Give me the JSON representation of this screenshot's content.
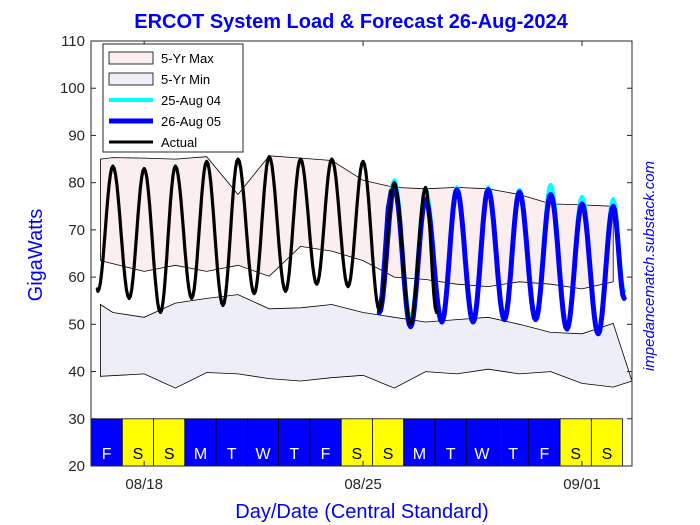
{
  "chart_data": {
    "type": "line",
    "title": "ERCOT System Load & Forecast 26-Aug-2024",
    "xlabel": "Day/Date (Central Standard)",
    "ylabel": "GigaWatts",
    "ylim": [
      20,
      110
    ],
    "xlim": [
      0,
      17.3
    ],
    "y_ticks": [
      20,
      30,
      40,
      50,
      60,
      70,
      80,
      90,
      100,
      110
    ],
    "x_ticks": [
      {
        "x": 1.7,
        "label": "08/18"
      },
      {
        "x": 8.7,
        "label": "08/25"
      },
      {
        "x": 15.7,
        "label": "09/01"
      }
    ],
    "grid": false,
    "legend_position": "top-left",
    "legend": [
      "5-Yr Max",
      "5-Yr Min",
      "25-Aug 04",
      "26-Aug 05",
      "Actual"
    ],
    "day_strip": {
      "labels": [
        "F",
        "S",
        "S",
        "M",
        "T",
        "W",
        "T",
        "F",
        "S",
        "S",
        "M",
        "T",
        "W",
        "T",
        "F",
        "S",
        "S"
      ],
      "weekday_color": "#0000ff",
      "weekend_color": "#ffff00"
    },
    "credit_text": "impedancematch.substack.com",
    "series": [
      {
        "name": "5-Yr Max",
        "fill_color": "#fbeeee",
        "upper": [
          [
            0.3,
            85
          ],
          [
            0.7,
            85.3
          ],
          [
            1.7,
            85.2
          ],
          [
            2.7,
            85
          ],
          [
            3.7,
            85.5
          ],
          [
            4.7,
            77.5
          ],
          [
            5.7,
            85.7
          ],
          [
            6.7,
            85.2
          ],
          [
            7.7,
            84.7
          ],
          [
            8.7,
            80.5
          ],
          [
            9.7,
            79
          ],
          [
            10.7,
            78.7
          ],
          [
            11.7,
            79
          ],
          [
            12.7,
            78.7
          ],
          [
            13.7,
            77.5
          ],
          [
            14.7,
            75.5
          ],
          [
            15.7,
            75.3
          ],
          [
            16.7,
            75
          ]
        ],
        "lower": [
          [
            0.3,
            63.5
          ],
          [
            1.7,
            61.2
          ],
          [
            2.7,
            62.5
          ],
          [
            3.7,
            61.2
          ],
          [
            4.7,
            62.5
          ],
          [
            5.7,
            60.2
          ],
          [
            6.7,
            66.5
          ],
          [
            7.7,
            65.5
          ],
          [
            8.7,
            63.5
          ],
          [
            9.7,
            60
          ],
          [
            10.7,
            59.5
          ],
          [
            11.7,
            58.5
          ],
          [
            12.7,
            58
          ],
          [
            13.7,
            59
          ],
          [
            14.7,
            58.5
          ],
          [
            15.7,
            57.5
          ],
          [
            16.7,
            59
          ]
        ]
      },
      {
        "name": "5-Yr Min",
        "fill_color": "#eeeef9",
        "upper": [
          [
            0.3,
            54.2
          ],
          [
            0.7,
            52.5
          ],
          [
            1.7,
            51.5
          ],
          [
            2.7,
            54.5
          ],
          [
            3.7,
            55.5
          ],
          [
            4.7,
            56.3
          ],
          [
            5.7,
            53.3
          ],
          [
            6.7,
            53.5
          ],
          [
            7.7,
            54.2
          ],
          [
            8.7,
            52.5
          ],
          [
            9.7,
            51.5
          ],
          [
            10.7,
            50.5
          ],
          [
            11.7,
            51
          ],
          [
            12.7,
            51.5
          ],
          [
            13.7,
            50
          ],
          [
            14.7,
            48.3
          ],
          [
            15.7,
            48
          ],
          [
            16.7,
            50.2
          ]
        ],
        "lower": [
          [
            0.3,
            39
          ],
          [
            1.7,
            39.5
          ],
          [
            2.7,
            36.5
          ],
          [
            3.7,
            39.8
          ],
          [
            4.7,
            39.5
          ],
          [
            5.7,
            38.5
          ],
          [
            6.7,
            38
          ],
          [
            7.7,
            38.7
          ],
          [
            8.7,
            39.2
          ],
          [
            9.7,
            36.5
          ],
          [
            10.7,
            40
          ],
          [
            11.7,
            39.5
          ],
          [
            12.7,
            40.5
          ],
          [
            13.7,
            39.5
          ],
          [
            14.7,
            40
          ],
          [
            15.7,
            37.5
          ],
          [
            16.7,
            36.7
          ],
          [
            17.3,
            38
          ]
        ]
      },
      {
        "name": "25-Aug 04",
        "color": "#00ffff",
        "start_x": 9.6,
        "days": [
          {
            "min": 53.5,
            "max": 80.5
          },
          {
            "min": 51,
            "max": 78.5
          },
          {
            "min": 50.5,
            "max": 79
          },
          {
            "min": 51,
            "max": 79
          },
          {
            "min": 51.5,
            "max": 78.5
          },
          {
            "min": 51.5,
            "max": 79.5
          },
          {
            "min": 49,
            "max": 77
          },
          {
            "min": 48,
            "max": 76.5
          }
        ],
        "end_value": 57
      },
      {
        "name": "26-Aug 05",
        "color": "#0000ff",
        "start_x": 9.6,
        "days": [
          {
            "min": 52.5,
            "max": 79
          },
          {
            "min": 49.5,
            "max": 76.5
          },
          {
            "min": 50.5,
            "max": 78.5
          },
          {
            "min": 50.5,
            "max": 78.5
          },
          {
            "min": 51,
            "max": 78
          },
          {
            "min": 51,
            "max": 77.5
          },
          {
            "min": 49,
            "max": 75.5
          },
          {
            "min": 48,
            "max": 75
          }
        ],
        "end_value": 55.5
      },
      {
        "name": "Actual",
        "color": "#000000",
        "start": 57.5,
        "days": [
          {
            "min": 57,
            "max": 83.5
          },
          {
            "min": 55.5,
            "max": 83
          },
          {
            "min": 52.5,
            "max": 83.5
          },
          {
            "min": 55.5,
            "max": 84.5
          },
          {
            "min": 54,
            "max": 85
          },
          {
            "min": 56.5,
            "max": 85.5
          },
          {
            "min": 57,
            "max": 85
          },
          {
            "min": 58.5,
            "max": 85
          },
          {
            "min": 58,
            "max": 84.5
          },
          {
            "min": 53,
            "max": 80
          },
          {
            "min": 50,
            "max": 79
          }
        ],
        "end_value": 52.5
      }
    ]
  }
}
